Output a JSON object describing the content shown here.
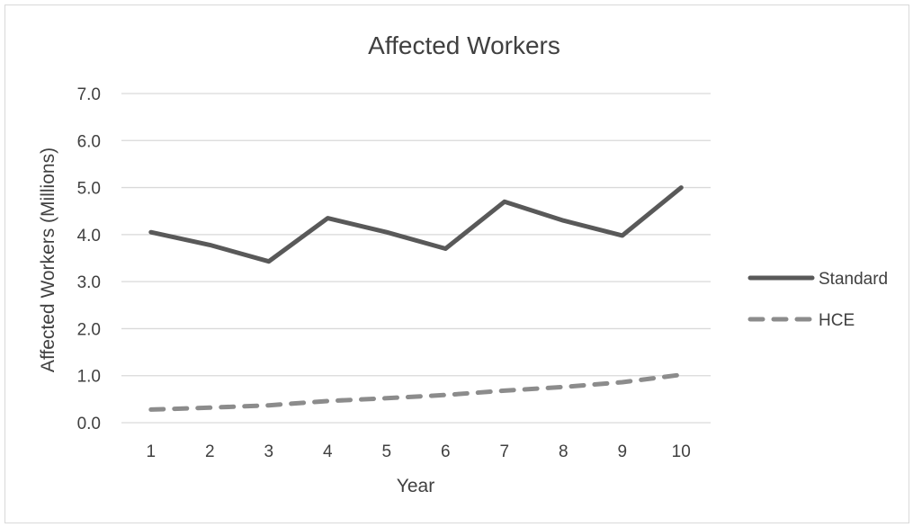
{
  "chart_data": {
    "type": "line",
    "title": "Affected Workers",
    "xlabel": "Year",
    "ylabel": "Affected Workers (Millions)",
    "categories": [
      "1",
      "2",
      "3",
      "4",
      "5",
      "6",
      "7",
      "8",
      "9",
      "10"
    ],
    "ylim": [
      0,
      7
    ],
    "yticks": [
      "0.0",
      "1.0",
      "2.0",
      "3.0",
      "4.0",
      "5.0",
      "6.0",
      "7.0"
    ],
    "grid": true,
    "legend_position": "right",
    "series": [
      {
        "name": "Standard",
        "values": [
          4.05,
          3.78,
          3.43,
          4.35,
          4.05,
          3.7,
          4.7,
          4.3,
          3.98,
          5.0
        ],
        "color": "#595959",
        "style": "solid"
      },
      {
        "name": "HCE",
        "values": [
          0.28,
          0.32,
          0.37,
          0.46,
          0.52,
          0.59,
          0.68,
          0.76,
          0.86,
          1.02
        ],
        "color": "#8c8c8c",
        "style": "dashed"
      }
    ]
  }
}
